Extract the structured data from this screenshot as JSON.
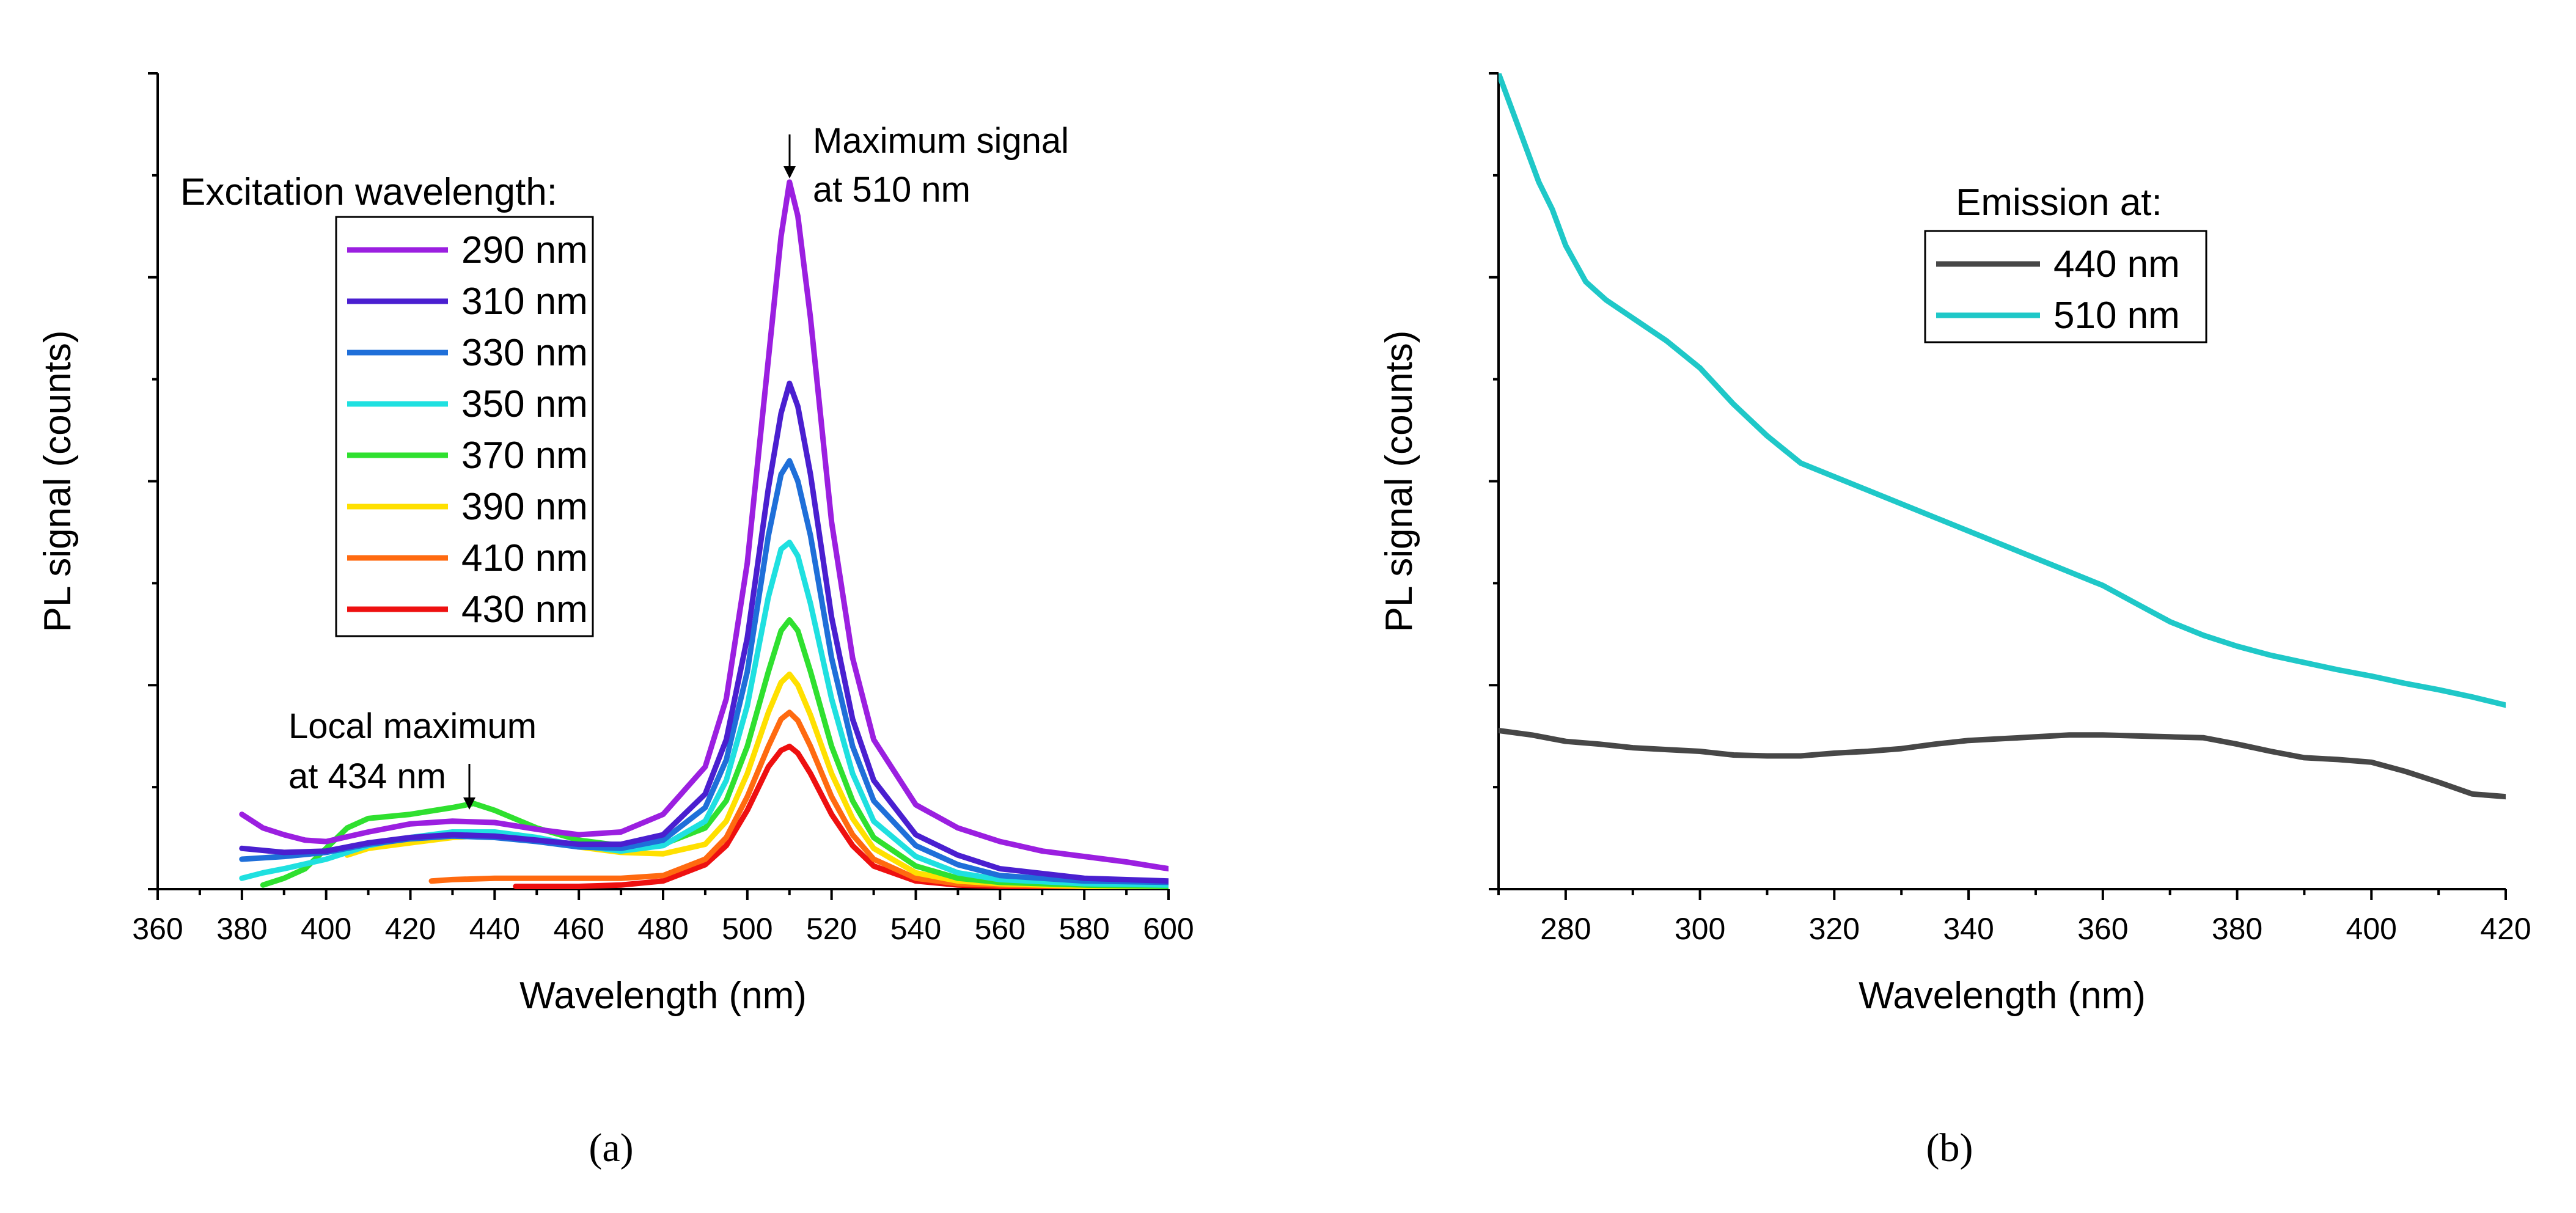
{
  "chart_data": [
    {
      "type": "line",
      "panel_label": "(a)",
      "xlabel": "Wavelength (nm)",
      "ylabel": "PL signal (counts)",
      "xlim": [
        360,
        600
      ],
      "ylim": [
        0,
        6
      ],
      "x_ticks": [
        360,
        380,
        400,
        420,
        440,
        460,
        480,
        500,
        520,
        540,
        560,
        580,
        600
      ],
      "grid": false,
      "legend": {
        "title": "Excitation wavelength:",
        "placement": "upper-left"
      },
      "annotations": [
        {
          "line1": "Maximum signal",
          "line2": "at 510 nm",
          "x": 510
        },
        {
          "line1": "Local maximum",
          "line2": "at 434 nm",
          "x": 434
        }
      ],
      "series": [
        {
          "name": "290 nm",
          "color": "#9b1fe0",
          "x": [
            380,
            385,
            390,
            395,
            400,
            410,
            420,
            430,
            440,
            450,
            460,
            470,
            480,
            490,
            495,
            500,
            505,
            508,
            510,
            512,
            515,
            520,
            525,
            530,
            540,
            550,
            560,
            570,
            580,
            590,
            600
          ],
          "y": [
            0.55,
            0.45,
            0.4,
            0.36,
            0.35,
            0.42,
            0.48,
            0.5,
            0.49,
            0.44,
            0.4,
            0.42,
            0.55,
            0.9,
            1.4,
            2.4,
            3.9,
            4.8,
            5.2,
            4.95,
            4.2,
            2.7,
            1.7,
            1.1,
            0.62,
            0.45,
            0.35,
            0.28,
            0.24,
            0.2,
            0.15
          ]
        },
        {
          "name": "310 nm",
          "color": "#4a1fd0",
          "x": [
            380,
            390,
            400,
            410,
            420,
            430,
            440,
            450,
            460,
            470,
            480,
            490,
            495,
            500,
            505,
            508,
            510,
            512,
            515,
            520,
            525,
            530,
            540,
            550,
            560,
            580,
            600
          ],
          "y": [
            0.3,
            0.27,
            0.28,
            0.34,
            0.38,
            0.4,
            0.39,
            0.36,
            0.33,
            0.33,
            0.4,
            0.7,
            1.1,
            1.85,
            2.95,
            3.5,
            3.72,
            3.55,
            3.05,
            2.0,
            1.25,
            0.8,
            0.4,
            0.25,
            0.15,
            0.08,
            0.06
          ]
        },
        {
          "name": "330 nm",
          "color": "#1f6fd9",
          "x": [
            380,
            390,
            400,
            410,
            420,
            430,
            440,
            450,
            460,
            470,
            480,
            490,
            495,
            500,
            505,
            508,
            510,
            512,
            515,
            520,
            525,
            530,
            540,
            550,
            560,
            580,
            600
          ],
          "y": [
            0.22,
            0.24,
            0.27,
            0.33,
            0.37,
            0.39,
            0.38,
            0.35,
            0.31,
            0.3,
            0.36,
            0.6,
            0.95,
            1.6,
            2.6,
            3.05,
            3.15,
            3.0,
            2.6,
            1.7,
            1.05,
            0.65,
            0.32,
            0.18,
            0.1,
            0.06,
            0.05
          ]
        },
        {
          "name": "350 nm",
          "color": "#1fe0e0",
          "x": [
            380,
            385,
            390,
            400,
            410,
            420,
            430,
            440,
            450,
            460,
            470,
            480,
            490,
            495,
            500,
            505,
            508,
            510,
            512,
            515,
            520,
            525,
            530,
            540,
            550,
            560,
            580,
            600
          ],
          "y": [
            0.08,
            0.12,
            0.15,
            0.22,
            0.32,
            0.38,
            0.42,
            0.42,
            0.38,
            0.32,
            0.28,
            0.32,
            0.5,
            0.8,
            1.35,
            2.15,
            2.5,
            2.55,
            2.45,
            2.1,
            1.4,
            0.85,
            0.5,
            0.24,
            0.12,
            0.07,
            0.04,
            0.03
          ]
        },
        {
          "name": "370 nm",
          "color": "#2fe02f",
          "x": [
            385,
            390,
            395,
            400,
            405,
            410,
            420,
            430,
            435,
            440,
            450,
            460,
            470,
            480,
            490,
            495,
            500,
            505,
            508,
            510,
            512,
            515,
            520,
            525,
            530,
            540,
            550,
            560,
            580,
            600
          ],
          "y": [
            0.03,
            0.08,
            0.15,
            0.3,
            0.45,
            0.52,
            0.55,
            0.6,
            0.63,
            0.58,
            0.45,
            0.36,
            0.32,
            0.33,
            0.45,
            0.65,
            1.05,
            1.6,
            1.9,
            1.98,
            1.9,
            1.6,
            1.05,
            0.65,
            0.38,
            0.17,
            0.08,
            0.05,
            0.03,
            0.02
          ]
        },
        {
          "name": "390 nm",
          "color": "#ffe000",
          "x": [
            405,
            410,
            420,
            430,
            440,
            450,
            460,
            470,
            480,
            490,
            495,
            500,
            505,
            508,
            510,
            512,
            515,
            520,
            525,
            530,
            540,
            550,
            560,
            580,
            600
          ],
          "y": [
            0.25,
            0.3,
            0.34,
            0.38,
            0.4,
            0.36,
            0.31,
            0.27,
            0.26,
            0.33,
            0.5,
            0.85,
            1.3,
            1.52,
            1.58,
            1.5,
            1.28,
            0.85,
            0.52,
            0.3,
            0.12,
            0.06,
            0.04,
            0.02,
            0.02
          ]
        },
        {
          "name": "410 nm",
          "color": "#ff6a10",
          "x": [
            425,
            430,
            440,
            450,
            460,
            470,
            480,
            490,
            495,
            500,
            505,
            508,
            510,
            512,
            515,
            520,
            525,
            530,
            540,
            550,
            560,
            580,
            600
          ],
          "y": [
            0.06,
            0.07,
            0.08,
            0.08,
            0.08,
            0.08,
            0.1,
            0.22,
            0.38,
            0.68,
            1.05,
            1.25,
            1.3,
            1.24,
            1.05,
            0.68,
            0.4,
            0.22,
            0.08,
            0.04,
            0.03,
            0.02,
            0.02
          ]
        },
        {
          "name": "430 nm",
          "color": "#ee1010",
          "x": [
            445,
            450,
            460,
            470,
            480,
            490,
            495,
            500,
            505,
            508,
            510,
            512,
            515,
            520,
            525,
            530,
            540,
            550,
            560,
            580,
            600
          ],
          "y": [
            0.02,
            0.02,
            0.02,
            0.03,
            0.06,
            0.18,
            0.32,
            0.58,
            0.9,
            1.02,
            1.05,
            1.0,
            0.85,
            0.55,
            0.32,
            0.17,
            0.06,
            0.03,
            0.02,
            0.01,
            0.01
          ]
        }
      ]
    },
    {
      "type": "line",
      "panel_label": "(b)",
      "xlabel": "Wavelength (nm)",
      "ylabel": "PL signal (counts)",
      "xlim": [
        270,
        420
      ],
      "ylim": [
        0,
        9
      ],
      "x_ticks": [
        280,
        300,
        320,
        340,
        360,
        380,
        400,
        420
      ],
      "grid": false,
      "legend": {
        "title": "Emission at:",
        "placement": "upper-right"
      },
      "series": [
        {
          "name": " 440 nm",
          "color": "#474747",
          "x": [
            270,
            275,
            280,
            285,
            290,
            295,
            300,
            305,
            310,
            315,
            320,
            325,
            330,
            335,
            340,
            345,
            350,
            355,
            360,
            365,
            370,
            375,
            380,
            385,
            390,
            395,
            400,
            405,
            410,
            415,
            420
          ],
          "y": [
            1.75,
            1.7,
            1.63,
            1.6,
            1.56,
            1.54,
            1.52,
            1.48,
            1.47,
            1.47,
            1.5,
            1.52,
            1.55,
            1.6,
            1.64,
            1.66,
            1.68,
            1.7,
            1.7,
            1.69,
            1.68,
            1.67,
            1.6,
            1.52,
            1.45,
            1.43,
            1.4,
            1.3,
            1.18,
            1.05,
            1.02
          ]
        },
        {
          "name": "510 nm",
          "color": "#1fc8c8",
          "x": [
            270,
            272,
            274,
            276,
            278,
            280,
            283,
            286,
            290,
            295,
            300,
            305,
            310,
            315,
            320,
            325,
            330,
            335,
            340,
            345,
            350,
            355,
            360,
            365,
            370,
            375,
            380,
            385,
            390,
            395,
            400,
            405,
            410,
            415,
            420
          ],
          "y": [
            9.0,
            8.6,
            8.2,
            7.8,
            7.5,
            7.1,
            6.7,
            6.5,
            6.3,
            6.05,
            5.75,
            5.35,
            5.0,
            4.7,
            4.55,
            4.4,
            4.25,
            4.1,
            3.95,
            3.8,
            3.65,
            3.5,
            3.35,
            3.15,
            2.95,
            2.8,
            2.68,
            2.58,
            2.5,
            2.42,
            2.35,
            2.27,
            2.2,
            2.12,
            2.03
          ]
        }
      ]
    }
  ]
}
